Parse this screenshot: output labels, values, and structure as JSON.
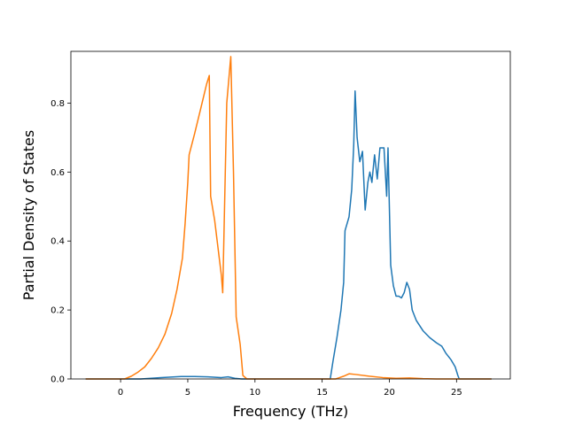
{
  "chart_data": {
    "type": "line",
    "xlabel": "Frequency (THz)",
    "ylabel": "Partial Density of States",
    "xlim": [
      -3.7,
      29
    ],
    "ylim": [
      0,
      0.95
    ],
    "xticks": [
      0,
      5,
      10,
      15,
      20,
      25
    ],
    "yticks": [
      0.0,
      0.2,
      0.4,
      0.6,
      0.8
    ],
    "x_tick_labels": [
      "0",
      "5",
      "10",
      "15",
      "20",
      "25"
    ],
    "y_tick_labels": [
      "0.0",
      "0.2",
      "0.4",
      "0.6",
      "0.8"
    ],
    "grid": false,
    "legend": false,
    "series": [
      {
        "color": "#1f77b4",
        "points": [
          [
            -2.6,
            0.0
          ],
          [
            1.5,
            0.0
          ],
          [
            3.0,
            0.004
          ],
          [
            4.5,
            0.007
          ],
          [
            5.5,
            0.007
          ],
          [
            6.5,
            0.006
          ],
          [
            7.5,
            0.004
          ],
          [
            8.0,
            0.006
          ],
          [
            8.5,
            0.002
          ],
          [
            9.0,
            0.0
          ],
          [
            15.6,
            0.0
          ],
          [
            15.8,
            0.05
          ],
          [
            16.1,
            0.12
          ],
          [
            16.4,
            0.2
          ],
          [
            16.6,
            0.28
          ],
          [
            16.7,
            0.43
          ],
          [
            17.0,
            0.47
          ],
          [
            17.2,
            0.55
          ],
          [
            17.35,
            0.68
          ],
          [
            17.45,
            0.835
          ],
          [
            17.6,
            0.7
          ],
          [
            17.8,
            0.63
          ],
          [
            18.0,
            0.66
          ],
          [
            18.2,
            0.49
          ],
          [
            18.4,
            0.57
          ],
          [
            18.55,
            0.6
          ],
          [
            18.7,
            0.57
          ],
          [
            18.9,
            0.65
          ],
          [
            19.1,
            0.58
          ],
          [
            19.3,
            0.67
          ],
          [
            19.6,
            0.67
          ],
          [
            19.8,
            0.53
          ],
          [
            19.9,
            0.67
          ],
          [
            20.1,
            0.33
          ],
          [
            20.3,
            0.27
          ],
          [
            20.5,
            0.24
          ],
          [
            20.7,
            0.24
          ],
          [
            20.9,
            0.235
          ],
          [
            21.1,
            0.25
          ],
          [
            21.3,
            0.28
          ],
          [
            21.5,
            0.26
          ],
          [
            21.7,
            0.2
          ],
          [
            22.0,
            0.17
          ],
          [
            22.5,
            0.14
          ],
          [
            23.0,
            0.12
          ],
          [
            23.5,
            0.105
          ],
          [
            23.9,
            0.095
          ],
          [
            24.2,
            0.075
          ],
          [
            24.6,
            0.055
          ],
          [
            24.9,
            0.035
          ],
          [
            25.1,
            0.01
          ],
          [
            25.2,
            0.0
          ],
          [
            27.6,
            0.0
          ]
        ]
      },
      {
        "color": "#ff7f0e",
        "points": [
          [
            -2.6,
            0.0
          ],
          [
            0.3,
            0.0
          ],
          [
            0.8,
            0.008
          ],
          [
            1.3,
            0.02
          ],
          [
            1.8,
            0.035
          ],
          [
            2.3,
            0.06
          ],
          [
            2.8,
            0.09
          ],
          [
            3.3,
            0.13
          ],
          [
            3.8,
            0.19
          ],
          [
            4.2,
            0.26
          ],
          [
            4.6,
            0.35
          ],
          [
            4.8,
            0.45
          ],
          [
            5.0,
            0.57
          ],
          [
            5.1,
            0.65
          ],
          [
            5.5,
            0.71
          ],
          [
            6.0,
            0.79
          ],
          [
            6.4,
            0.855
          ],
          [
            6.6,
            0.88
          ],
          [
            6.7,
            0.53
          ],
          [
            7.0,
            0.46
          ],
          [
            7.5,
            0.3
          ],
          [
            7.6,
            0.25
          ],
          [
            7.9,
            0.8
          ],
          [
            8.2,
            0.935
          ],
          [
            8.4,
            0.6
          ],
          [
            8.6,
            0.18
          ],
          [
            8.9,
            0.1
          ],
          [
            9.1,
            0.01
          ],
          [
            9.4,
            0.0
          ],
          [
            16.0,
            0.0
          ],
          [
            16.6,
            0.008
          ],
          [
            17.0,
            0.015
          ],
          [
            17.5,
            0.013
          ],
          [
            18.5,
            0.008
          ],
          [
            19.5,
            0.004
          ],
          [
            20.5,
            0.002
          ],
          [
            21.5,
            0.003
          ],
          [
            22.5,
            0.001
          ],
          [
            23.5,
            0.0
          ],
          [
            27.6,
            0.0
          ]
        ]
      }
    ]
  }
}
